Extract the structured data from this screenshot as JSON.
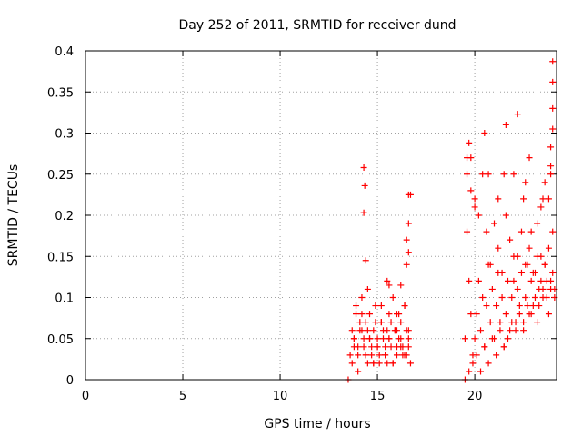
{
  "chart_data": {
    "type": "scatter",
    "title": "Day 252 of 2011, SRMTID for receiver dund",
    "xlabel": "GPS time / hours",
    "ylabel": "SRMTID / TECUs",
    "xlim": [
      0,
      24.2
    ],
    "ylim": [
      0,
      0.4
    ],
    "xticks": [
      0,
      5,
      10,
      15,
      20
    ],
    "yticks": [
      0,
      0.05,
      0.1,
      0.15,
      0.2,
      0.25,
      0.3,
      0.35,
      0.4
    ],
    "ytick_labels": [
      "0",
      "0.05",
      "0.1",
      "0.15",
      "0.2",
      "0.25",
      "0.3",
      "0.35",
      "0.4"
    ],
    "grid": true,
    "marker": "+",
    "series": [
      {
        "color": "#ff0000",
        "x": [
          13.5,
          13.6,
          13.7,
          13.8,
          13.9,
          14.0,
          14.1,
          14.2,
          14.3,
          14.4,
          14.5,
          14.6,
          14.7,
          14.8,
          14.9,
          15.0,
          15.1,
          15.2,
          15.3,
          15.4,
          15.5,
          15.6,
          15.7,
          15.8,
          15.9,
          16.0,
          16.1,
          16.2,
          16.3,
          16.4,
          16.5,
          16.6,
          16.7,
          13.7,
          13.8,
          13.9,
          14.0,
          14.1,
          14.2,
          14.3,
          14.4,
          14.5,
          14.6,
          14.7,
          14.8,
          14.9,
          15.0,
          15.1,
          15.2,
          15.3,
          15.4,
          15.5,
          15.6,
          15.7,
          15.8,
          15.9,
          16.0,
          16.1,
          16.2,
          16.3,
          16.4,
          16.5,
          16.6,
          13.8,
          14.0,
          14.2,
          14.4,
          14.6,
          14.8,
          15.0,
          15.2,
          15.4,
          15.6,
          15.8,
          16.0,
          16.2,
          16.4,
          16.6,
          14.3,
          14.35,
          14.3,
          14.4,
          14.5,
          15.5,
          15.6,
          16.0,
          16.2,
          16.5,
          16.6,
          16.6,
          16.7,
          16.5,
          16.6,
          19.5,
          19.6,
          19.7,
          19.8,
          19.9,
          20.0,
          20.1,
          20.2,
          20.3,
          20.4,
          20.5,
          20.6,
          20.7,
          20.8,
          20.9,
          21.0,
          21.1,
          21.2,
          21.3,
          21.4,
          21.5,
          21.6,
          21.7,
          21.8,
          21.9,
          22.0,
          22.1,
          22.2,
          22.3,
          22.4,
          22.5,
          22.6,
          22.7,
          22.8,
          22.9,
          23.0,
          23.1,
          23.2,
          23.3,
          23.4,
          23.5,
          23.6,
          23.7,
          23.8,
          23.9,
          24.0,
          24.1,
          19.6,
          19.8,
          20.0,
          20.2,
          20.4,
          20.6,
          20.8,
          21.0,
          21.2,
          21.4,
          21.6,
          21.8,
          22.0,
          22.2,
          22.4,
          22.6,
          22.8,
          23.0,
          23.2,
          23.4,
          23.6,
          23.8,
          24.0,
          19.5,
          19.7,
          19.9,
          20.1,
          20.3,
          20.5,
          20.7,
          20.9,
          21.1,
          21.3,
          21.5,
          21.7,
          21.9,
          22.1,
          22.3,
          22.5,
          22.7,
          22.9,
          23.1,
          23.3,
          23.5,
          23.7,
          23.9,
          24.1,
          19.6,
          19.7,
          19.8,
          20.0,
          20.5,
          20.7,
          21.2,
          21.5,
          21.6,
          22.0,
          22.2,
          22.6,
          22.8,
          23.4,
          23.6,
          23.8,
          23.9,
          23.9,
          24.0,
          24.0,
          24.0,
          24.0,
          23.9,
          23.5,
          23.2,
          22.9,
          22.5
        ],
        "y": [
          0.0,
          0.03,
          0.06,
          0.05,
          0.08,
          0.04,
          0.07,
          0.1,
          0.05,
          0.03,
          0.06,
          0.08,
          0.04,
          0.02,
          0.07,
          0.05,
          0.03,
          0.09,
          0.06,
          0.04,
          0.02,
          0.05,
          0.07,
          0.1,
          0.06,
          0.04,
          0.08,
          0.05,
          0.03,
          0.09,
          0.06,
          0.04,
          0.02,
          0.02,
          0.05,
          0.09,
          0.03,
          0.06,
          0.08,
          0.04,
          0.07,
          0.02,
          0.05,
          0.03,
          0.06,
          0.09,
          0.04,
          0.02,
          0.07,
          0.05,
          0.03,
          0.06,
          0.08,
          0.04,
          0.02,
          0.06,
          0.03,
          0.05,
          0.07,
          0.04,
          0.09,
          0.03,
          0.06,
          0.04,
          0.01,
          0.06,
          0.03,
          0.05,
          0.02,
          0.04,
          0.07,
          0.03,
          0.05,
          0.02,
          0.06,
          0.04,
          0.03,
          0.05,
          0.258,
          0.236,
          0.203,
          0.145,
          0.11,
          0.12,
          0.115,
          0.08,
          0.115,
          0.17,
          0.19,
          0.225,
          0.225,
          0.14,
          0.155,
          0.05,
          0.18,
          0.12,
          0.08,
          0.03,
          0.05,
          0.08,
          0.12,
          0.06,
          0.1,
          0.04,
          0.09,
          0.14,
          0.07,
          0.11,
          0.05,
          0.09,
          0.13,
          0.07,
          0.1,
          0.04,
          0.08,
          0.12,
          0.06,
          0.1,
          0.15,
          0.07,
          0.11,
          0.09,
          0.13,
          0.06,
          0.1,
          0.14,
          0.08,
          0.12,
          0.09,
          0.13,
          0.07,
          0.11,
          0.15,
          0.1,
          0.14,
          0.12,
          0.08,
          0.11,
          0.13,
          0.1,
          0.25,
          0.27,
          0.22,
          0.2,
          0.25,
          0.18,
          0.14,
          0.19,
          0.16,
          0.13,
          0.2,
          0.17,
          0.12,
          0.15,
          0.18,
          0.14,
          0.16,
          0.13,
          0.15,
          0.12,
          0.14,
          0.16,
          0.18,
          0.0,
          0.01,
          0.02,
          0.03,
          0.01,
          0.04,
          0.02,
          0.05,
          0.03,
          0.06,
          0.04,
          0.05,
          0.07,
          0.06,
          0.08,
          0.07,
          0.09,
          0.08,
          0.1,
          0.09,
          0.11,
          0.1,
          0.12,
          0.11,
          0.27,
          0.288,
          0.23,
          0.21,
          0.3,
          0.25,
          0.22,
          0.25,
          0.31,
          0.25,
          0.323,
          0.24,
          0.27,
          0.21,
          0.24,
          0.22,
          0.25,
          0.283,
          0.305,
          0.33,
          0.362,
          0.387,
          0.26,
          0.22,
          0.19,
          0.18,
          0.22
        ]
      }
    ]
  }
}
